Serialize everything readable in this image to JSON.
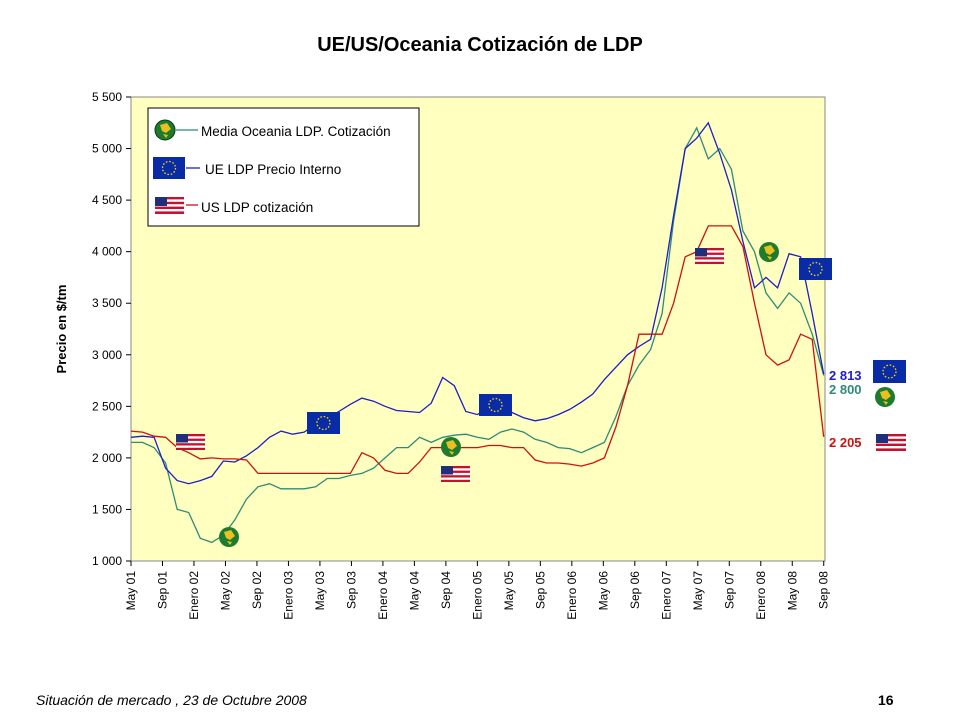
{
  "footer": {
    "text": "Situación de mercado , 23 de  Octubre 2008",
    "page_number": "16"
  },
  "colors": {
    "plot_bg": "#FFFFC0",
    "oceania": "#2E8B78",
    "eu": "#1E1EC8",
    "us": "#D01010"
  },
  "chart_data": {
    "type": "line",
    "title": "UE/US/Oceania Cotización de LDP",
    "xlabel": "",
    "ylabel": "Precio en $/tm",
    "ylim": [
      1000,
      5500
    ],
    "yticks": [
      1000,
      1500,
      2000,
      2500,
      3000,
      3500,
      4000,
      4500,
      5000,
      5500
    ],
    "ytick_labels": [
      "1 000",
      "1 500",
      "2 000",
      "2 500",
      "3 000",
      "3 500",
      "4 000",
      "4 500",
      "5 000",
      "5 500"
    ],
    "grid": false,
    "legend_position": "top-left",
    "x_categories": [
      "May 01",
      "Sep 01",
      "Enero 02",
      "May 02",
      "Sep 02",
      "Enero 03",
      "May 03",
      "Sep 03",
      "Enero 04",
      "May 04",
      "Sep 04",
      "Enero 05",
      "May 05",
      "Sep 05",
      "Enero 06",
      "May 06",
      "Sep 06",
      "Enero 07",
      "May 07",
      "Sep 07",
      "Enero 08",
      "May 08",
      "Sep 08"
    ],
    "series": [
      {
        "name": "Media Oceania LDP. Cotización",
        "color_key": "oceania",
        "end_label": "2 800",
        "values": [
          2150,
          2150,
          2100,
          1950,
          1500,
          1470,
          1220,
          1180,
          1250,
          1400,
          1600,
          1720,
          1750,
          1700,
          1700,
          1700,
          1720,
          1800,
          1800,
          1830,
          1850,
          1900,
          2000,
          2100,
          2100,
          2200,
          2150,
          2200,
          2220,
          2230,
          2200,
          2180,
          2250,
          2280,
          2250,
          2180,
          2150,
          2100,
          2090,
          2050,
          2100,
          2150,
          2400,
          2700,
          2900,
          3050,
          3400,
          4300,
          5000,
          5200,
          4900,
          5000,
          4800,
          4200,
          4000,
          3600,
          3450,
          3600,
          3500,
          3200,
          2800
        ],
        "x_start": 0,
        "x_step": 0.3667
      },
      {
        "name": "UE LDP  Precio Interno",
        "color_key": "eu",
        "end_label": "2 813",
        "values": [
          2200,
          2210,
          2200,
          1900,
          1780,
          1750,
          1780,
          1820,
          1970,
          1960,
          2020,
          2100,
          2200,
          2260,
          2230,
          2250,
          2330,
          2380,
          2450,
          2520,
          2580,
          2550,
          2500,
          2460,
          2450,
          2440,
          2530,
          2780,
          2700,
          2450,
          2420,
          2500,
          2480,
          2440,
          2390,
          2360,
          2380,
          2420,
          2470,
          2540,
          2620,
          2760,
          2880,
          3000,
          3080,
          3150,
          3650,
          4350,
          5000,
          5100,
          5250,
          4950,
          4600,
          4100,
          3650,
          3750,
          3650,
          3980,
          3950,
          3400,
          2813
        ],
        "x_start": 0,
        "x_step": 0.3667
      },
      {
        "name": "US LDP cotización",
        "color_key": "us",
        "end_label": "2 205",
        "values": [
          2260,
          2250,
          2210,
          2200,
          2100,
          2050,
          1990,
          2000,
          1990,
          1990,
          1980,
          1850,
          1850,
          1850,
          1850,
          1850,
          1850,
          1850,
          1850,
          1850,
          2050,
          2000,
          1880,
          1850,
          1850,
          1960,
          2100,
          2100,
          2100,
          2100,
          2100,
          2120,
          2120,
          2100,
          2100,
          1980,
          1950,
          1950,
          1940,
          1920,
          1950,
          2000,
          2300,
          2700,
          3200,
          3200,
          3200,
          3500,
          3950,
          4000,
          4250,
          4250,
          4250,
          4050,
          3500,
          3000,
          2900,
          2950,
          3200,
          3150,
          2205
        ],
        "x_start": 0,
        "x_step": 0.3667
      }
    ]
  }
}
